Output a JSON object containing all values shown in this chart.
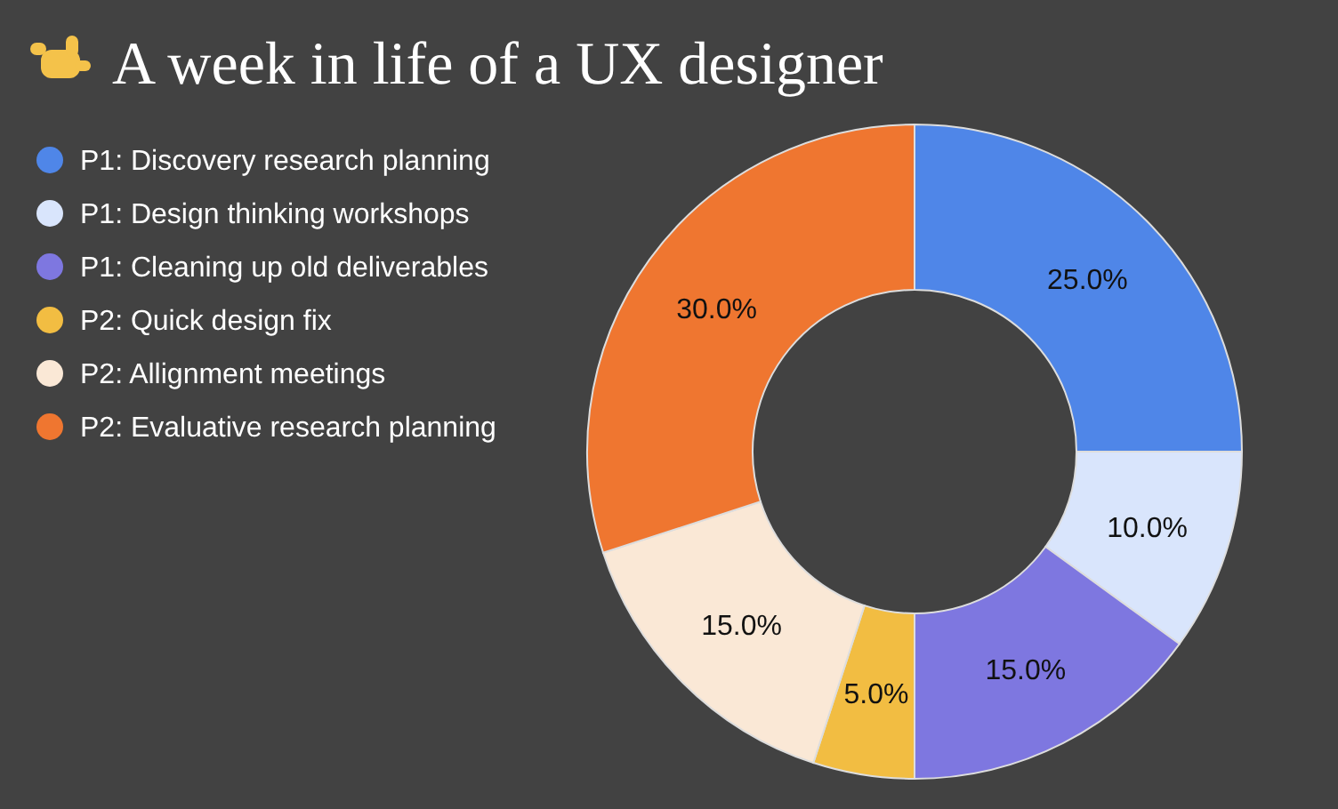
{
  "chart_data": {
    "type": "donut",
    "title": "A week in life of a UX designer",
    "categories": [
      "P1: Discovery research planning",
      "P1: Design thinking workshops",
      "P1: Cleaning up old deliverables",
      "P2: Quick design fix",
      "P2: Allignment meetings",
      "P2: Evaluative research planning"
    ],
    "values": [
      25,
      10,
      15,
      5,
      15,
      30
    ],
    "colors": [
      "#4f86e8",
      "#d9e5fc",
      "#7e77e0",
      "#f2bd42",
      "#fae8d6",
      "#ef7630"
    ],
    "value_labels": [
      "25.0%",
      "10.0%",
      "15.0%",
      "5.0%",
      "15.0%",
      "30.0%"
    ],
    "legend": "left"
  }
}
